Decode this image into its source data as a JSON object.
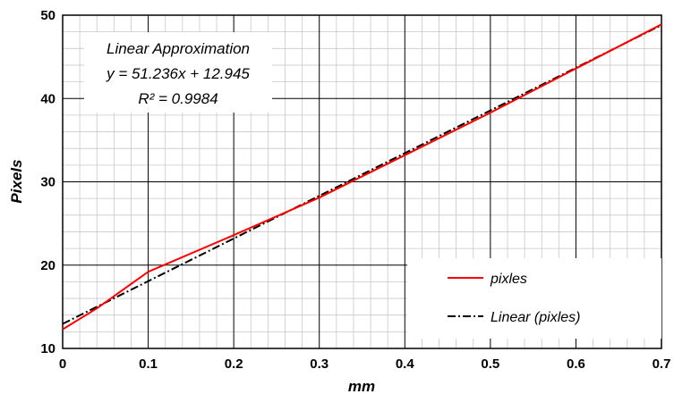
{
  "chart_data": {
    "type": "line",
    "title": "",
    "xlabel": "mm",
    "ylabel": "Pixels",
    "xlim": [
      0,
      0.7
    ],
    "ylim": [
      10,
      50
    ],
    "x_ticks": [
      0,
      0.1,
      0.2,
      0.3,
      0.4,
      0.5,
      0.6,
      0.7
    ],
    "x_tick_labels": [
      "0",
      "0.1",
      "0.2",
      "0.3",
      "0.4",
      "0.5",
      "0.6",
      "0.7"
    ],
    "y_ticks": [
      10,
      20,
      30,
      40,
      50
    ],
    "y_tick_labels": [
      "10",
      "20",
      "30",
      "40",
      "50"
    ],
    "grid": {
      "major": true,
      "minor": true
    },
    "legend_position": "bottom-right",
    "annotation": [
      "Linear Approximation",
      "y = 51.236x + 12.945",
      "R² = 0.9984"
    ],
    "series": [
      {
        "name": "pixles",
        "style": "solid",
        "color": "#ff0000",
        "x": [
          0,
          0.04,
          0.1,
          0.2,
          0.3,
          0.4,
          0.5,
          0.6,
          0.7
        ],
        "y": [
          12.3,
          14.8,
          19.2,
          23.6,
          28.1,
          33.2,
          38.3,
          43.6,
          48.9
        ]
      },
      {
        "name": "Linear (pixles)",
        "style": "dash-dot",
        "color": "#000000",
        "trendline": {
          "slope": 51.236,
          "intercept": 12.945
        },
        "x": [
          0,
          0.7
        ],
        "y": [
          12.945,
          48.81
        ]
      }
    ]
  }
}
